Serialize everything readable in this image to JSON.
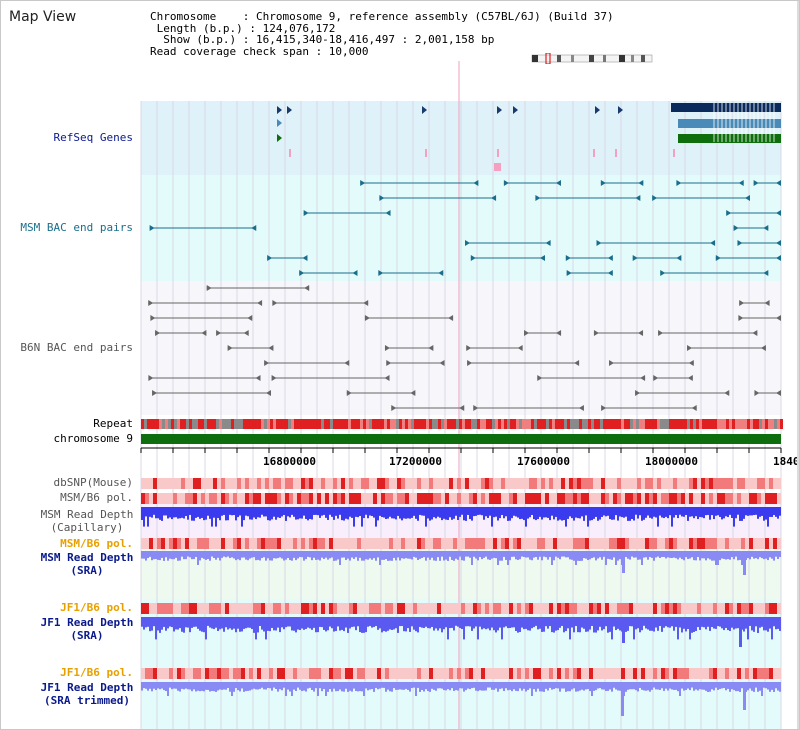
{
  "panel_title": "Map View",
  "header": {
    "chromosome_line": "Chromosome    : Chromosome 9, reference assembly (C57BL/6J) (Build 37)",
    "length_line": " Length (b.p.) : 124,076,172",
    "show_line": "  Show (b.p.) : 16,415,340-18,416,497 : 2,001,158 bp",
    "coverage_line": "Read coverage check span : 10,000"
  },
  "tracks": {
    "refseq": "RefSeq Genes",
    "msm_bac": "MSM BAC end pairs",
    "b6n_bac": "B6N BAC end pairs",
    "repeat": "Repeat",
    "chromosome": "chromosome 9",
    "dbsnp": "dbSNP(Mouse)",
    "msm_b6_pol_1": "MSM/B6 pol.",
    "msm_depth_cap": "MSM Read Depth\n(Capillary)",
    "msm_b6_pol_2": "MSM/B6 pol.",
    "msm_depth_sra": "MSM Read Depth\n(SRA)",
    "jf1_b6_pol_1": "JF1/B6 pol.",
    "jf1_depth_sra": "JF1 Read Depth\n(SRA)",
    "jf1_b6_pol_2": "JF1/B6 pol.",
    "jf1_depth_trim": "JF1 Read Depth\n(SRA trimmed)"
  },
  "axis_ticks": [
    "16800000",
    "17200000",
    "17600000",
    "18000000",
    "1840"
  ],
  "colors": {
    "refseq_bg": "#dff2fa",
    "msm_bac_bg": "#e3fbfb",
    "b6n_bac_bg": "#f7f7fb",
    "label_navy": "#0a1a8c",
    "label_teal": "#1a6e8c",
    "label_gray": "#555555",
    "label_orange": "#e8a000",
    "repeat_red": "#e02020",
    "chrom_green": "#0e6e0e",
    "depth_blue": "#3a3aee",
    "depth_light": "#8a8af5"
  }
}
